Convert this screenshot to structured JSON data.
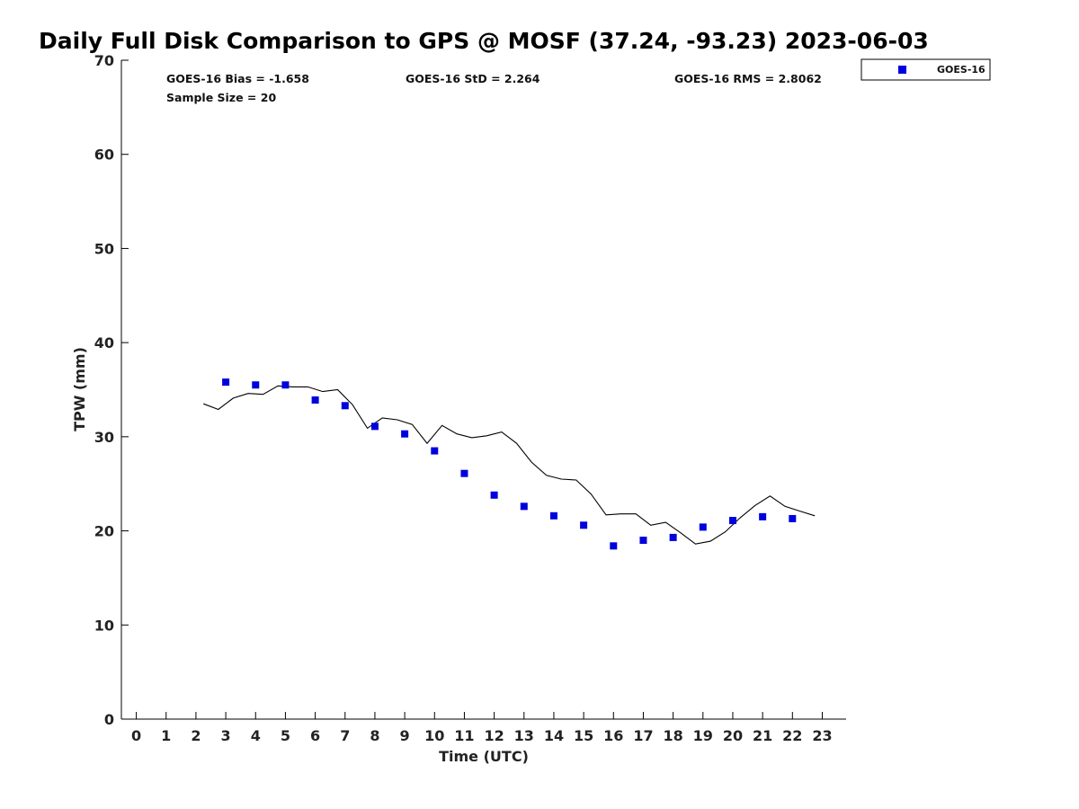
{
  "chart_data": {
    "type": "scatter",
    "title": "Daily Full Disk Comparison to GPS @ MOSF (37.24, -93.23) 2023-06-03",
    "xlabel": "Time (UTC)",
    "ylabel": "TPW (mm)",
    "xlim": [
      -0.5,
      23.8
    ],
    "ylim": [
      0,
      70
    ],
    "xticks": [
      0,
      1,
      2,
      3,
      4,
      5,
      6,
      7,
      8,
      9,
      10,
      11,
      12,
      13,
      14,
      15,
      16,
      17,
      18,
      19,
      20,
      21,
      22,
      23
    ],
    "yticks": [
      0,
      10,
      20,
      30,
      40,
      50,
      60,
      70
    ],
    "stats": {
      "bias": "GOES-16 Bias = -1.658",
      "std": "GOES-16 StD = 2.264",
      "rms": "GOES-16 RMS = 2.8062",
      "sample": "Sample Size = 20"
    },
    "legend": {
      "label": "GOES-16",
      "position": "top-right outside"
    },
    "series": [
      {
        "name": "GOES-16",
        "kind": "markers",
        "color": "#0000dd",
        "x": [
          3,
          4,
          5,
          6,
          7,
          8,
          9,
          10,
          11,
          12,
          13,
          14,
          15,
          16,
          17,
          18,
          19,
          20,
          21,
          22
        ],
        "y": [
          35.8,
          35.5,
          35.5,
          33.9,
          33.3,
          31.1,
          30.3,
          28.5,
          26.1,
          23.8,
          22.6,
          21.6,
          20.6,
          18.4,
          19.0,
          19.3,
          20.4,
          21.1,
          21.5,
          21.3
        ]
      },
      {
        "name": "GPS",
        "kind": "line",
        "color": "#000000",
        "x": [
          2.25,
          2.75,
          3.25,
          3.75,
          4.25,
          4.75,
          5.25,
          5.75,
          6.25,
          6.75,
          7.25,
          7.75,
          8.25,
          8.75,
          9.25,
          9.75,
          10.25,
          10.75,
          11.25,
          11.75,
          12.25,
          12.75,
          13.25,
          13.75,
          14.25,
          14.75,
          15.25,
          15.75,
          16.25,
          16.75,
          17.25,
          17.75,
          18.25,
          18.75,
          19.25,
          19.75,
          20.25,
          20.75,
          21.25,
          21.75,
          22.25,
          22.75
        ],
        "y": [
          33.5,
          32.9,
          34.1,
          34.6,
          34.5,
          35.4,
          35.3,
          35.3,
          34.8,
          35.0,
          33.4,
          30.9,
          32.0,
          31.8,
          31.3,
          29.3,
          31.2,
          30.3,
          29.9,
          30.1,
          30.5,
          29.3,
          27.3,
          25.9,
          25.5,
          25.4,
          23.9,
          21.7,
          21.8,
          21.8,
          20.6,
          20.9,
          19.8,
          18.6,
          18.9,
          19.9,
          21.4,
          22.7,
          23.7,
          22.6,
          22.1,
          21.6
        ]
      }
    ]
  }
}
